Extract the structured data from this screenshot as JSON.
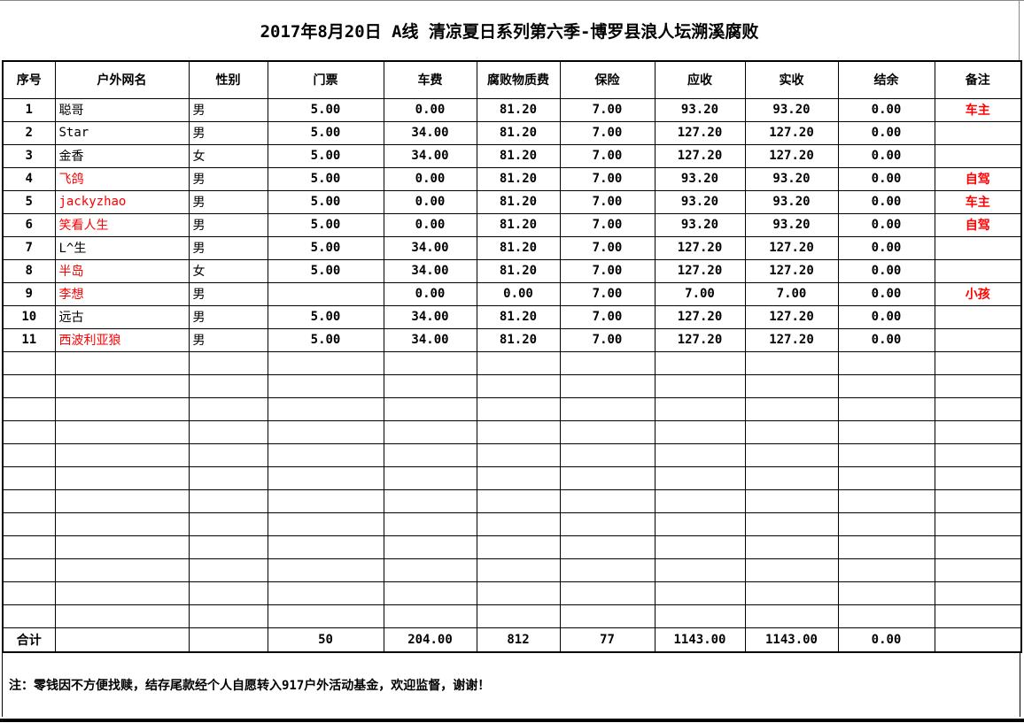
{
  "title": "2017年8月20日 A线 清凉夏日系列第六季-博罗县浪人坛溯溪腐败",
  "colors": {
    "red": "#ff0000",
    "grid": "#000000"
  },
  "table": {
    "columns": [
      {
        "key": "no",
        "label": "序号"
      },
      {
        "key": "name",
        "label": "户外网名"
      },
      {
        "key": "gender",
        "label": "性别"
      },
      {
        "key": "ticket",
        "label": "门票"
      },
      {
        "key": "car_fee",
        "label": "车费"
      },
      {
        "key": "supplies_fee",
        "label": "腐败物质费"
      },
      {
        "key": "insurance",
        "label": "保险"
      },
      {
        "key": "receivable",
        "label": "应收"
      },
      {
        "key": "received",
        "label": "实收"
      },
      {
        "key": "balance",
        "label": "结余"
      },
      {
        "key": "remark",
        "label": "备注"
      }
    ],
    "rows": [
      {
        "no": "1",
        "name": "聪哥",
        "name_red": false,
        "gender": "男",
        "ticket": "5.00",
        "car_fee": "0.00",
        "supplies_fee": "81.20",
        "insurance": "7.00",
        "receivable": "93.20",
        "received": "93.20",
        "balance": "0.00",
        "remark": "车主"
      },
      {
        "no": "2",
        "name": "Star",
        "name_red": false,
        "gender": "男",
        "ticket": "5.00",
        "car_fee": "34.00",
        "supplies_fee": "81.20",
        "insurance": "7.00",
        "receivable": "127.20",
        "received": "127.20",
        "balance": "0.00",
        "remark": ""
      },
      {
        "no": "3",
        "name": "金香",
        "name_red": false,
        "gender": "女",
        "ticket": "5.00",
        "car_fee": "34.00",
        "supplies_fee": "81.20",
        "insurance": "7.00",
        "receivable": "127.20",
        "received": "127.20",
        "balance": "0.00",
        "remark": ""
      },
      {
        "no": "4",
        "name": "飞鸽",
        "name_red": true,
        "gender": "男",
        "ticket": "5.00",
        "car_fee": "0.00",
        "supplies_fee": "81.20",
        "insurance": "7.00",
        "receivable": "93.20",
        "received": "93.20",
        "balance": "0.00",
        "remark": "自驾"
      },
      {
        "no": "5",
        "name": "jackyzhao",
        "name_red": true,
        "gender": "男",
        "ticket": "5.00",
        "car_fee": "0.00",
        "supplies_fee": "81.20",
        "insurance": "7.00",
        "receivable": "93.20",
        "received": "93.20",
        "balance": "0.00",
        "remark": "车主"
      },
      {
        "no": "6",
        "name": "笑看人生",
        "name_red": true,
        "gender": "男",
        "ticket": "5.00",
        "car_fee": "0.00",
        "supplies_fee": "81.20",
        "insurance": "7.00",
        "receivable": "93.20",
        "received": "93.20",
        "balance": "0.00",
        "remark": "自驾"
      },
      {
        "no": "7",
        "name": "L^生",
        "name_red": false,
        "gender": "男",
        "ticket": "5.00",
        "car_fee": "34.00",
        "supplies_fee": "81.20",
        "insurance": "7.00",
        "receivable": "127.20",
        "received": "127.20",
        "balance": "0.00",
        "remark": ""
      },
      {
        "no": "8",
        "name": "半岛",
        "name_red": true,
        "gender": "女",
        "ticket": "5.00",
        "car_fee": "34.00",
        "supplies_fee": "81.20",
        "insurance": "7.00",
        "receivable": "127.20",
        "received": "127.20",
        "balance": "0.00",
        "remark": ""
      },
      {
        "no": "9",
        "name": "李想",
        "name_red": true,
        "gender": "男",
        "ticket": "",
        "car_fee": "0.00",
        "supplies_fee": "0.00",
        "insurance": "7.00",
        "receivable": "7.00",
        "received": "7.00",
        "balance": "0.00",
        "remark": "小孩"
      },
      {
        "no": "10",
        "name": "远古",
        "name_red": false,
        "gender": "男",
        "ticket": "5.00",
        "car_fee": "34.00",
        "supplies_fee": "81.20",
        "insurance": "7.00",
        "receivable": "127.20",
        "received": "127.20",
        "balance": "0.00",
        "remark": ""
      },
      {
        "no": "11",
        "name": "西波利亚狼",
        "name_red": true,
        "gender": "男",
        "ticket": "5.00",
        "car_fee": "34.00",
        "supplies_fee": "81.20",
        "insurance": "7.00",
        "receivable": "127.20",
        "received": "127.20",
        "balance": "0.00",
        "remark": ""
      }
    ],
    "empty_row_count": 12,
    "total_row": {
      "no": "合计",
      "name": "",
      "gender": "",
      "ticket": "50",
      "car_fee": "204.00",
      "supplies_fee": "812",
      "insurance": "77",
      "receivable": "1143.00",
      "received": "1143.00",
      "balance": "0.00",
      "remark": ""
    }
  },
  "footer_note": "注：零钱因不方便找赎，结存尾款经个人自愿转入917户外活动基金，欢迎监督，谢谢！"
}
